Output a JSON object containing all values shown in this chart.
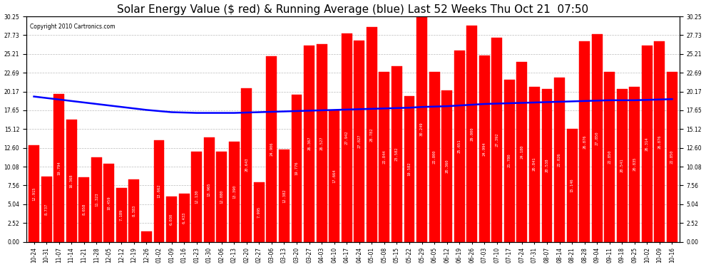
{
  "title": "Solar Energy Value ($ red) & Running Average (blue) Last 52 Weeks Thu Oct 21  07:50",
  "copyright": "Copyright 2010 Cartronics.com",
  "bar_color": "#ff0000",
  "avg_color": "#0000ff",
  "background_color": "#ffffff",
  "grid_color": "#aaaaaa",
  "categories": [
    "10-24",
    "10-31",
    "11-07",
    "11-14",
    "11-21",
    "11-28",
    "12-05",
    "12-12",
    "12-19",
    "12-26",
    "01-02",
    "01-09",
    "01-16",
    "01-23",
    "01-30",
    "02-06",
    "02-13",
    "02-20",
    "02-27",
    "03-06",
    "03-13",
    "03-20",
    "03-27",
    "04-03",
    "04-10",
    "04-17",
    "04-24",
    "05-01",
    "05-08",
    "05-15",
    "05-22",
    "05-29",
    "06-05",
    "06-12",
    "06-19",
    "06-26",
    "07-03",
    "07-10",
    "07-17",
    "07-24",
    "07-31",
    "08-07",
    "08-14",
    "08-21",
    "08-28",
    "09-04",
    "09-11",
    "09-18",
    "09-25",
    "10-02",
    "10-09",
    "10-16"
  ],
  "values": [
    12.915,
    8.737,
    19.794,
    16.368,
    8.658,
    11.323,
    10.459,
    7.189,
    8.383,
    1.364,
    13.662,
    6.03,
    6.433,
    12.13,
    13.965,
    12.08,
    13.39,
    20.643,
    7.995,
    24.906,
    12.382,
    19.776,
    26.367,
    26.527,
    17.664,
    27.942,
    27.027,
    28.782,
    22.844,
    23.582,
    19.582,
    30.249,
    22.8,
    20.36,
    25.651,
    29.0,
    24.994,
    27.392,
    21.78,
    24.18,
    20.841,
    20.538,
    22.026,
    15.146,
    26.876,
    27.85,
    22.85,
    20.541,
    20.835,
    26.314,
    26.876,
    22.85
  ],
  "running_avg": [
    19.5,
    19.3,
    19.1,
    18.9,
    18.7,
    18.5,
    18.3,
    18.1,
    17.9,
    17.7,
    17.55,
    17.4,
    17.35,
    17.3,
    17.3,
    17.3,
    17.3,
    17.35,
    17.4,
    17.45,
    17.5,
    17.55,
    17.6,
    17.65,
    17.7,
    17.75,
    17.8,
    17.85,
    17.9,
    17.95,
    18.0,
    18.1,
    18.15,
    18.2,
    18.3,
    18.4,
    18.5,
    18.55,
    18.6,
    18.65,
    18.7,
    18.75,
    18.8,
    18.85,
    18.9,
    18.95,
    19.0,
    19.0,
    19.0,
    19.05,
    19.1,
    19.15
  ],
  "ylim": [
    0,
    30.25
  ],
  "yticks": [
    0.0,
    2.52,
    5.04,
    7.56,
    10.08,
    12.6,
    15.12,
    17.65,
    20.17,
    22.69,
    25.21,
    27.73,
    30.25
  ],
  "title_fontsize": 11,
  "tick_fontsize": 5.5,
  "val_fontsize": 4.0
}
